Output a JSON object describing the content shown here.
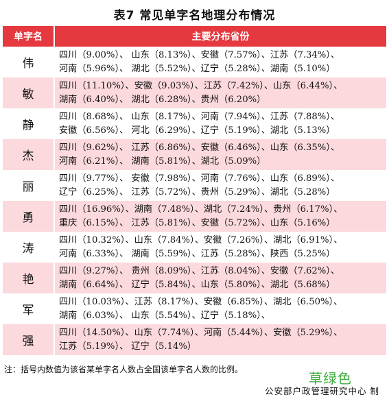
{
  "title": "表7  常见单字名地理分布情况",
  "headers": {
    "name": "单字名",
    "provinces": "主要分布省份"
  },
  "rows": [
    {
      "name": "伟",
      "line1": "四川（9.00%）、 山东（8.13%）、安徽（7.57%）、江苏（7.34%）、",
      "line2": "河南（5.96%）、 湖北（5.52%）、辽宁（5.28%）、湖南（5.10%）"
    },
    {
      "name": "敏",
      "line1": "四川（11.10%）、安徽（9.03%）、江苏（7.42%）、山东（6.44%）、",
      "line2": "湖南（6.40%）、 湖北（6.28%）、贵州（6.20%）"
    },
    {
      "name": "静",
      "line1": "四川（8.68%）、 山东（8.17%）、河南（7.94%）、江苏（7.88%）、",
      "line2": "安徽（6.56%）、 河北（6.29%）、辽宁（5.19%）、湖北（5.13%）"
    },
    {
      "name": "杰",
      "line1": "四川（9.62%）、 江苏（6.86%）、安徽（6.46%）、山东（6.35%）、",
      "line2": "河南（6.21%）、 湖南（5.81%）、湖北（5.09%）"
    },
    {
      "name": "丽",
      "line1": "四川（9.77%）、 安徽（7.98%）、河南（7.76%）、山东（6.89%）、",
      "line2": "辽宁（6.25%）、 江苏（5.72%）、贵州（5.29%）、湖北（5.28%）"
    },
    {
      "name": "勇",
      "line1": "四川（16.96%）、湖南（7.48%）、湖北（7.24%）、贵州（6.17%）、",
      "line2": "重庆（6.15%）、 江苏（5.81%）、安徽（5.72%）、山东（5.16%）"
    },
    {
      "name": "涛",
      "line1": "四川（10.32%）、山东（7.84%）、安徽（7.26%）、湖北（6.91%）、",
      "line2": "河南（6.33%）、 湖南（5.59%）、江苏（5.28%）、陕西（5.25%）"
    },
    {
      "name": "艳",
      "line1": "四川（9.27%）、 贵州（8.09%）、江苏（8.04%）、安徽（7.62%）、",
      "line2": "湖南（6.64%）、 辽宁（5.84%）、山东（5.80%）、湖北（5.68%）"
    },
    {
      "name": "军",
      "line1": "四川（10.03%）、江苏（8.17%）、安徽（6.85%）、湖北（6.50%）、",
      "line2": "湖南（6.03%）、 山东（5.54%）、辽宁（5.18%）、"
    },
    {
      "name": "强",
      "line1": "四川（14.50%）、山东（7.74%）、河南（5.44%）、安徽（5.29%）、",
      "line2": "江苏（5.19%）、 辽宁（5.14%）"
    }
  ],
  "note": "注：括号内数值为该省某单字名人数占全国该单字名人数的比例。",
  "watermark": "草绿色",
  "source": "公安部户政管理研究中心 制",
  "colors": {
    "header_bg": "#e5383f",
    "stripe": "#fbd9dd",
    "watermark": "#3fae3f"
  }
}
